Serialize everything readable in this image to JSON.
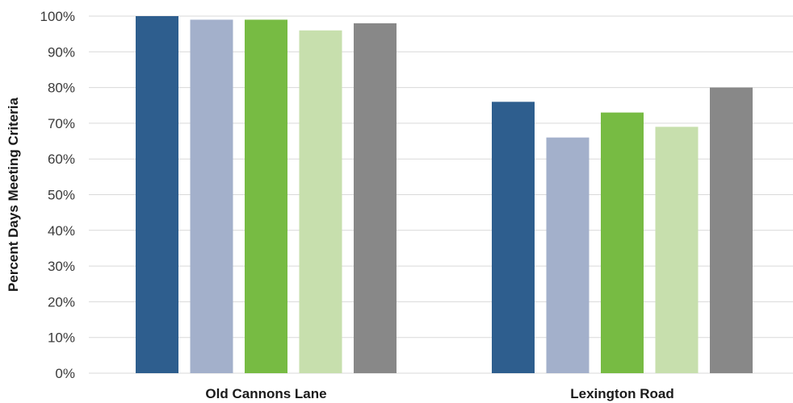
{
  "chart_data": {
    "type": "bar",
    "title": "",
    "xlabel": "",
    "ylabel": "Percent Days Meeting Criteria",
    "ylim": [
      0,
      100
    ],
    "yticks": [
      0,
      10,
      20,
      30,
      40,
      50,
      60,
      70,
      80,
      90,
      100
    ],
    "ytick_labels": [
      "0%",
      "10%",
      "20%",
      "30%",
      "40%",
      "50%",
      "60%",
      "70%",
      "80%",
      "90%",
      "100%"
    ],
    "grid": true,
    "legend": "none",
    "categories": [
      "Old Cannons Lane",
      "Lexington Road"
    ],
    "series": [
      {
        "color": "#2e5e8e",
        "values": [
          100,
          76
        ]
      },
      {
        "color": "#a3b0cb",
        "values": [
          99,
          66
        ]
      },
      {
        "color": "#77bb43",
        "values": [
          99,
          73
        ]
      },
      {
        "color": "#c7dfad",
        "values": [
          96,
          69
        ]
      },
      {
        "color": "#888888",
        "values": [
          98,
          80
        ]
      }
    ]
  }
}
